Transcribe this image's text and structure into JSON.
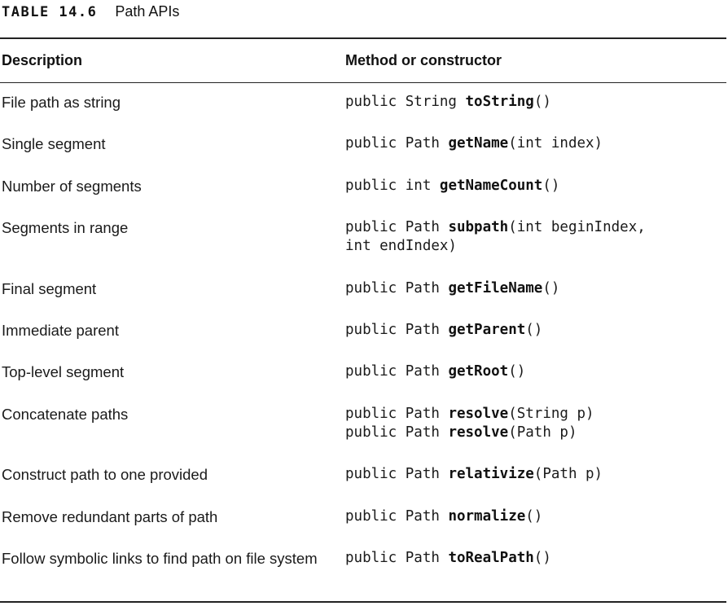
{
  "caption": {
    "label": "TABLE 14.6",
    "title": "Path APIs"
  },
  "columns": [
    "Description",
    "Method or constructor"
  ],
  "rows": [
    {
      "description": "File path as string",
      "lines": [
        {
          "pre": "public String ",
          "name": "toString",
          "args": "()"
        }
      ]
    },
    {
      "description": "Single segment",
      "lines": [
        {
          "pre": "public Path ",
          "name": "getName",
          "args": "(int index)"
        }
      ]
    },
    {
      "description": "Number of segments",
      "lines": [
        {
          "pre": "public int ",
          "name": "getNameCount",
          "args": "()"
        }
      ]
    },
    {
      "description": "Segments in range",
      "lines": [
        {
          "pre": "public Path ",
          "name": "subpath",
          "args": "(int beginIndex,"
        },
        {
          "pre": "int endIndex)",
          "name": "",
          "args": ""
        }
      ]
    },
    {
      "description": "Final segment",
      "lines": [
        {
          "pre": "public Path ",
          "name": "getFileName",
          "args": "()"
        }
      ]
    },
    {
      "description": "Immediate parent",
      "lines": [
        {
          "pre": "public Path ",
          "name": "getParent",
          "args": "()"
        }
      ]
    },
    {
      "description": "Top-level segment",
      "lines": [
        {
          "pre": "public Path ",
          "name": "getRoot",
          "args": "()"
        }
      ]
    },
    {
      "description": "Concatenate paths",
      "lines": [
        {
          "pre": "public Path ",
          "name": "resolve",
          "args": "(String p)"
        },
        {
          "pre": "public Path ",
          "name": "resolve",
          "args": "(Path p)"
        }
      ]
    },
    {
      "description": "Construct path to one provided",
      "lines": [
        {
          "pre": "public Path ",
          "name": "relativize",
          "args": "(Path p)"
        }
      ]
    },
    {
      "description": "Remove redundant parts of path",
      "lines": [
        {
          "pre": "public Path ",
          "name": "normalize",
          "args": "()"
        }
      ]
    },
    {
      "description": "Follow symbolic links to find path on file system",
      "lines": [
        {
          "pre": "public Path ",
          "name": "toRealPath",
          "args": "()"
        }
      ]
    }
  ]
}
